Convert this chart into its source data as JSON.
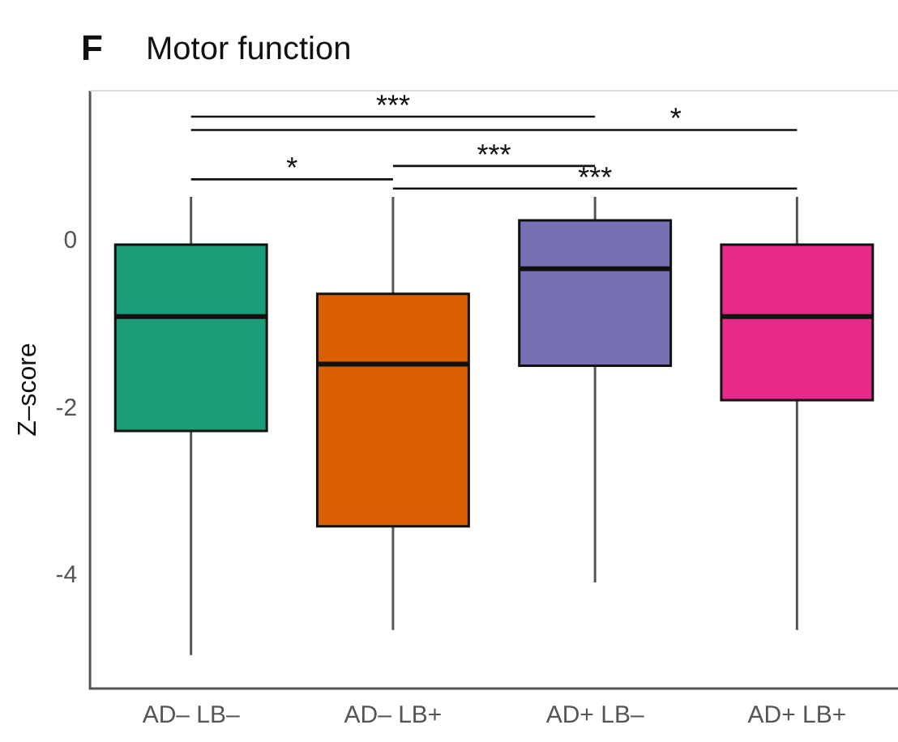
{
  "chart_data": {
    "type": "box",
    "title": "Motor function",
    "ylabel": "Z–score",
    "categories": [
      "AD– LB–",
      "AD– LB+",
      "AD+ LB–",
      "AD+ LB+"
    ],
    "colors": [
      "#1b9e77",
      "#d95f02",
      "#7570b3",
      "#e7298a"
    ],
    "boxes": [
      {
        "low": -4.95,
        "q1": -2.27,
        "median": -0.9,
        "q3": -0.04,
        "high": 0.53
      },
      {
        "low": -4.65,
        "q1": -3.41,
        "median": -1.47,
        "q3": -0.63,
        "high": 0.53
      },
      {
        "low": -4.08,
        "q1": -1.49,
        "median": -0.33,
        "q3": 0.25,
        "high": 0.53
      },
      {
        "low": -4.65,
        "q1": -1.9,
        "median": -0.9,
        "q3": -0.04,
        "high": 0.53
      }
    ],
    "ylim": [
      -5.35,
      1.8
    ],
    "yticks": [
      -4,
      -2,
      0
    ],
    "grid": false,
    "annotations": [
      "F",
      "***",
      "*",
      "*",
      "***",
      "***"
    ]
  }
}
